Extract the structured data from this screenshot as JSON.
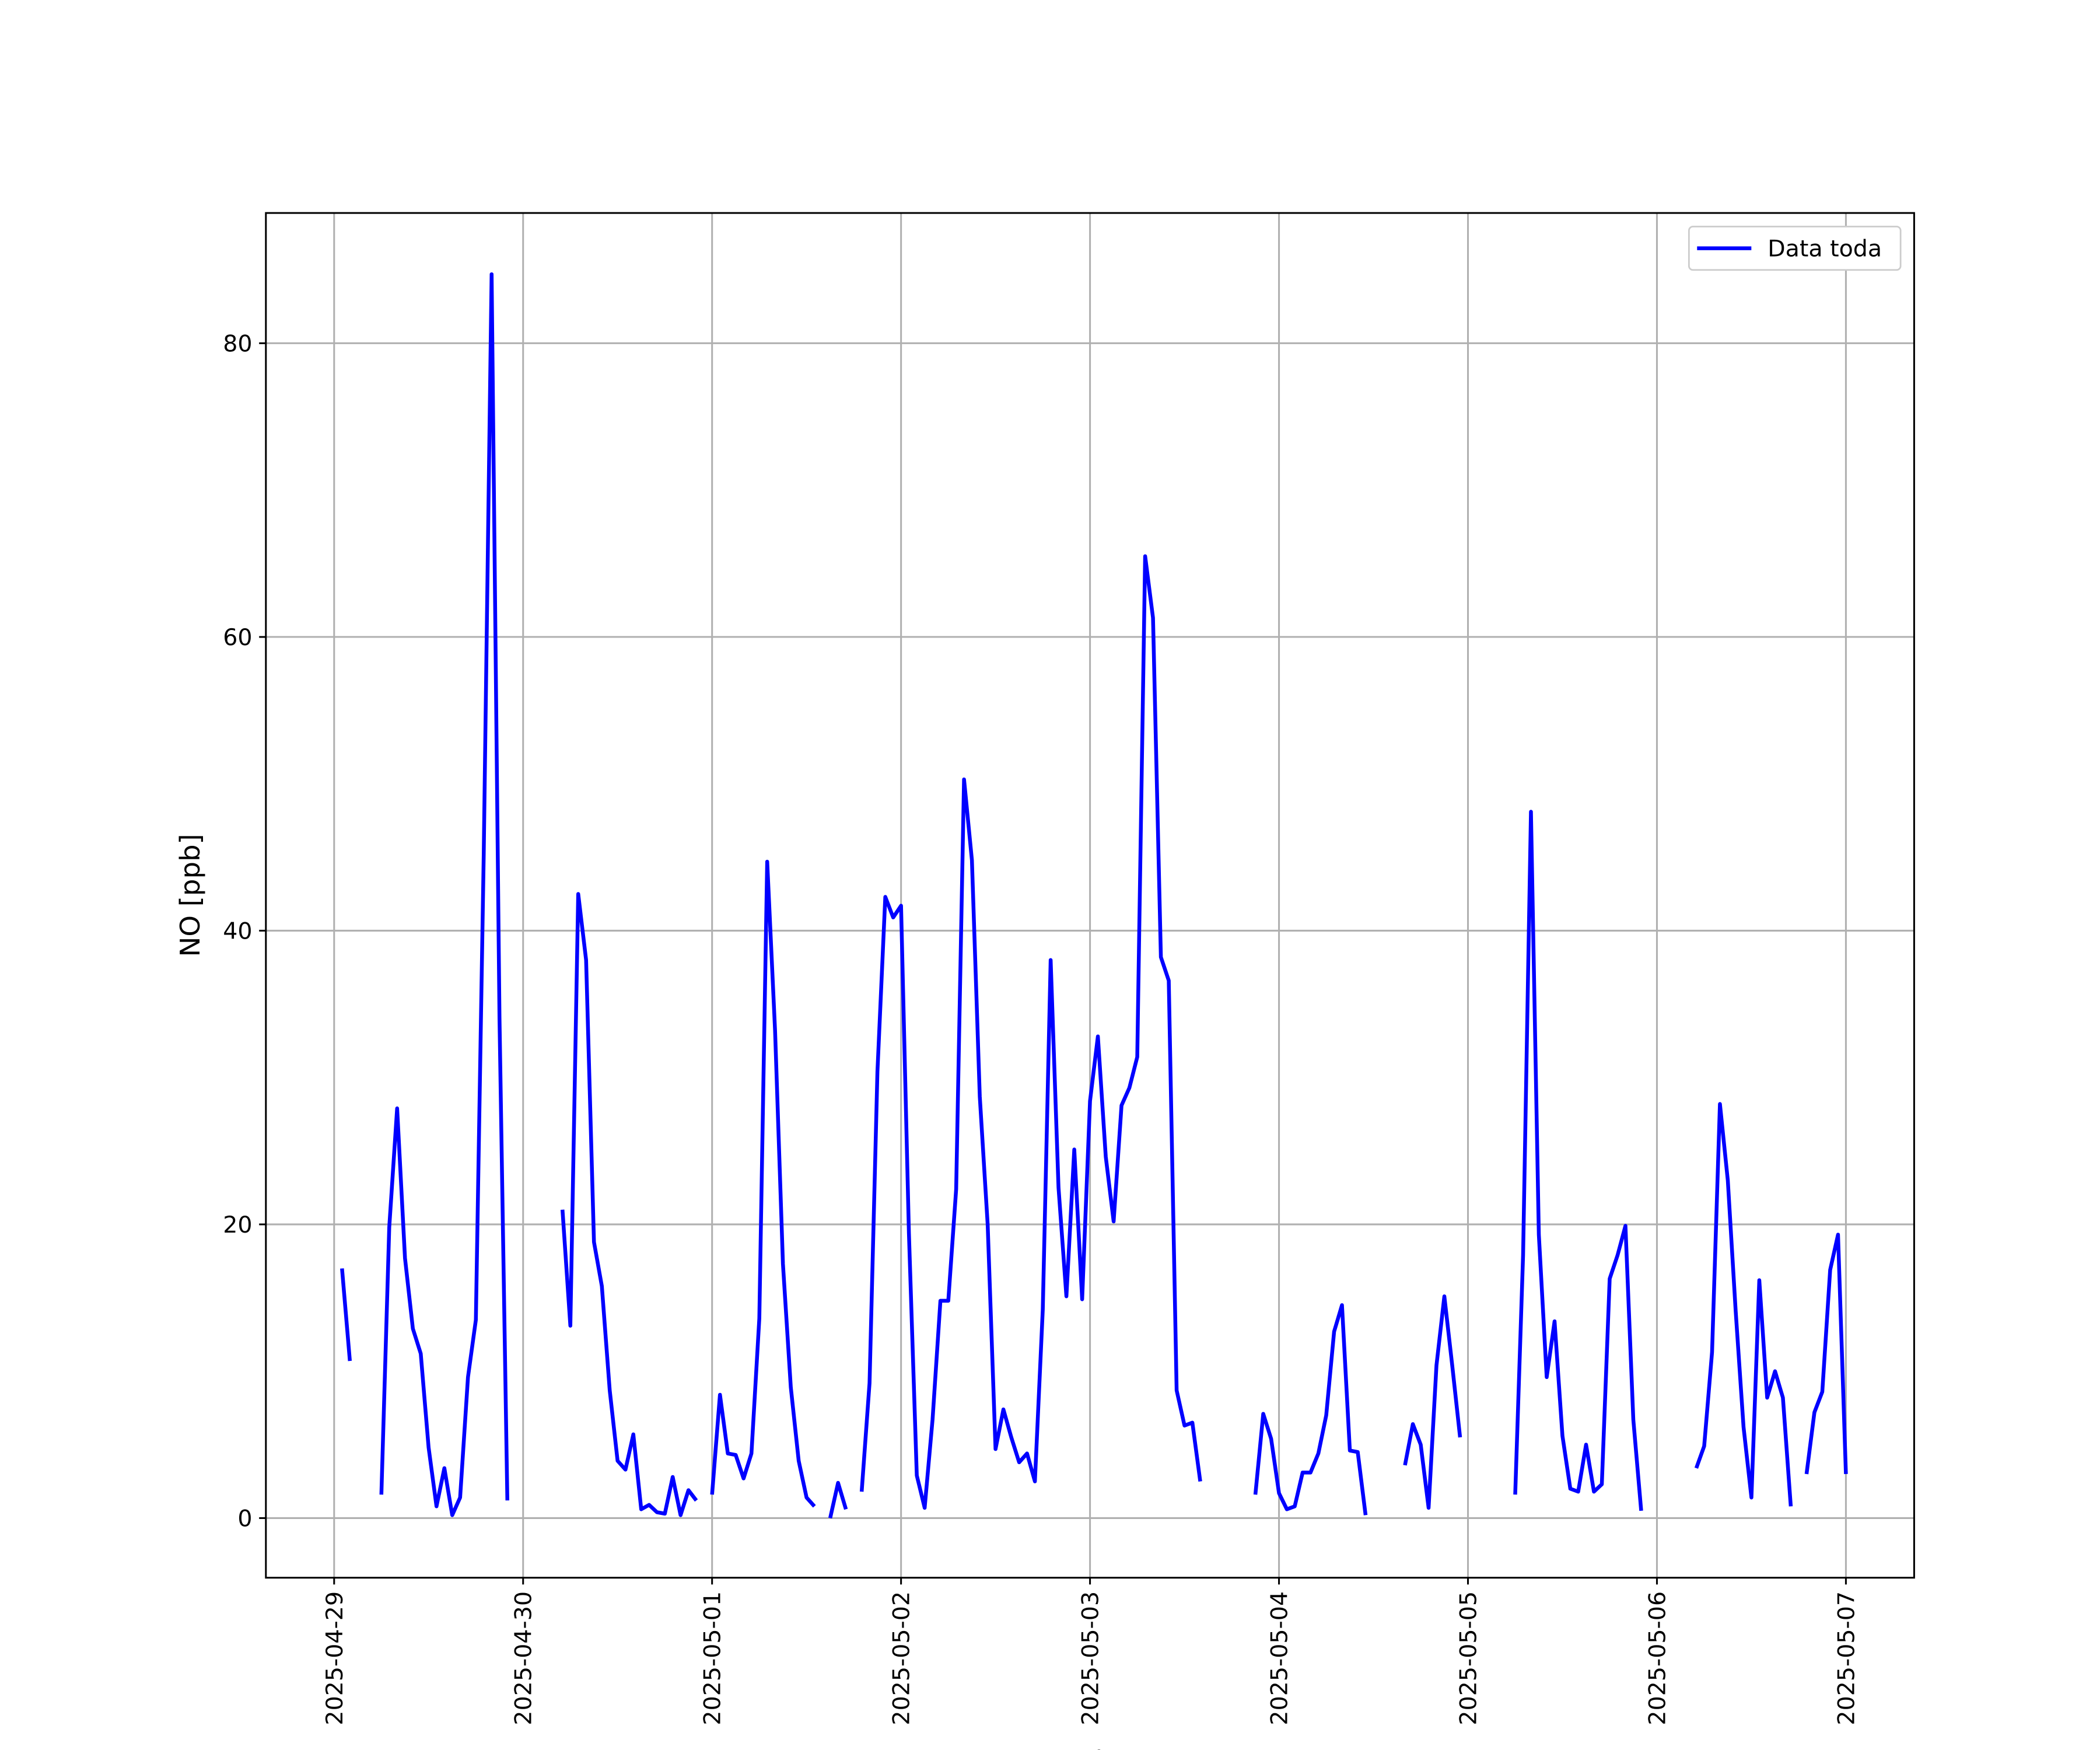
{
  "chart_data": {
    "type": "line",
    "xlabel": "Fecha",
    "ylabel": "NO [ppb]",
    "x": [
      "2025-04-29 01:00",
      "2025-04-29 02:00",
      "2025-04-29 03:00",
      "2025-04-29 04:00",
      "2025-04-29 05:00",
      "2025-04-29 06:00",
      "2025-04-29 07:00",
      "2025-04-29 08:00",
      "2025-04-29 09:00",
      "2025-04-29 10:00",
      "2025-04-29 11:00",
      "2025-04-29 12:00",
      "2025-04-29 13:00",
      "2025-04-29 14:00",
      "2025-04-29 15:00",
      "2025-04-29 16:00",
      "2025-04-29 17:00",
      "2025-04-29 18:00",
      "2025-04-29 19:00",
      "2025-04-29 20:00",
      "2025-04-29 21:00",
      "2025-04-29 22:00",
      "2025-04-29 23:00",
      "2025-04-30 00:00",
      "2025-04-30 01:00",
      "2025-04-30 02:00",
      "2025-04-30 03:00",
      "2025-04-30 04:00",
      "2025-04-30 05:00",
      "2025-04-30 06:00",
      "2025-04-30 07:00",
      "2025-04-30 08:00",
      "2025-04-30 09:00",
      "2025-04-30 10:00",
      "2025-04-30 11:00",
      "2025-04-30 12:00",
      "2025-04-30 13:00",
      "2025-04-30 14:00",
      "2025-04-30 15:00",
      "2025-04-30 16:00",
      "2025-04-30 17:00",
      "2025-04-30 18:00",
      "2025-04-30 19:00",
      "2025-04-30 20:00",
      "2025-04-30 21:00",
      "2025-04-30 22:00",
      "2025-04-30 23:00",
      "2025-05-01 00:00",
      "2025-05-01 01:00",
      "2025-05-01 02:00",
      "2025-05-01 03:00",
      "2025-05-01 04:00",
      "2025-05-01 05:00",
      "2025-05-01 06:00",
      "2025-05-01 07:00",
      "2025-05-01 08:00",
      "2025-05-01 09:00",
      "2025-05-01 10:00",
      "2025-05-01 11:00",
      "2025-05-01 12:00",
      "2025-05-01 13:00",
      "2025-05-01 14:00",
      "2025-05-01 15:00",
      "2025-05-01 16:00",
      "2025-05-01 17:00",
      "2025-05-01 18:00",
      "2025-05-01 19:00",
      "2025-05-01 20:00",
      "2025-05-01 21:00",
      "2025-05-01 22:00",
      "2025-05-01 23:00",
      "2025-05-02 00:00",
      "2025-05-02 01:00",
      "2025-05-02 02:00",
      "2025-05-02 03:00",
      "2025-05-02 04:00",
      "2025-05-02 05:00",
      "2025-05-02 06:00",
      "2025-05-02 07:00",
      "2025-05-02 08:00",
      "2025-05-02 09:00",
      "2025-05-02 10:00",
      "2025-05-02 11:00",
      "2025-05-02 12:00",
      "2025-05-02 13:00",
      "2025-05-02 14:00",
      "2025-05-02 15:00",
      "2025-05-02 16:00",
      "2025-05-02 17:00",
      "2025-05-02 18:00",
      "2025-05-02 19:00",
      "2025-05-02 20:00",
      "2025-05-02 21:00",
      "2025-05-02 22:00",
      "2025-05-02 23:00",
      "2025-05-03 00:00",
      "2025-05-03 01:00",
      "2025-05-03 02:00",
      "2025-05-03 03:00",
      "2025-05-03 04:00",
      "2025-05-03 05:00",
      "2025-05-03 06:00",
      "2025-05-03 07:00",
      "2025-05-03 08:00",
      "2025-05-03 09:00",
      "2025-05-03 10:00",
      "2025-05-03 11:00",
      "2025-05-03 12:00",
      "2025-05-03 13:00",
      "2025-05-03 14:00",
      "2025-05-03 15:00",
      "2025-05-03 16:00",
      "2025-05-03 17:00",
      "2025-05-03 18:00",
      "2025-05-03 19:00",
      "2025-05-03 20:00",
      "2025-05-03 21:00",
      "2025-05-03 22:00",
      "2025-05-03 23:00",
      "2025-05-04 00:00",
      "2025-05-04 01:00",
      "2025-05-04 02:00",
      "2025-05-04 03:00",
      "2025-05-04 04:00",
      "2025-05-04 05:00",
      "2025-05-04 06:00",
      "2025-05-04 07:00",
      "2025-05-04 08:00",
      "2025-05-04 09:00",
      "2025-05-04 10:00",
      "2025-05-04 11:00",
      "2025-05-04 12:00",
      "2025-05-04 13:00",
      "2025-05-04 14:00",
      "2025-05-04 15:00",
      "2025-05-04 16:00",
      "2025-05-04 17:00",
      "2025-05-04 18:00",
      "2025-05-04 19:00",
      "2025-05-04 20:00",
      "2025-05-04 21:00",
      "2025-05-04 22:00",
      "2025-05-04 23:00",
      "2025-05-05 00:00",
      "2025-05-05 01:00",
      "2025-05-05 02:00",
      "2025-05-05 03:00",
      "2025-05-05 04:00",
      "2025-05-05 05:00",
      "2025-05-05 06:00",
      "2025-05-05 07:00",
      "2025-05-05 08:00",
      "2025-05-05 09:00",
      "2025-05-05 10:00",
      "2025-05-05 11:00",
      "2025-05-05 12:00",
      "2025-05-05 13:00",
      "2025-05-05 14:00",
      "2025-05-05 15:00",
      "2025-05-05 16:00",
      "2025-05-05 17:00",
      "2025-05-05 18:00",
      "2025-05-05 19:00",
      "2025-05-05 20:00",
      "2025-05-05 21:00",
      "2025-05-05 22:00",
      "2025-05-05 23:00",
      "2025-05-06 00:00",
      "2025-05-06 01:00",
      "2025-05-06 02:00",
      "2025-05-06 03:00",
      "2025-05-06 04:00",
      "2025-05-06 05:00",
      "2025-05-06 06:00",
      "2025-05-06 07:00",
      "2025-05-06 08:00",
      "2025-05-06 09:00",
      "2025-05-06 10:00",
      "2025-05-06 11:00",
      "2025-05-06 12:00",
      "2025-05-06 13:00",
      "2025-05-06 14:00",
      "2025-05-06 15:00",
      "2025-05-06 16:00",
      "2025-05-06 17:00",
      "2025-05-06 18:00",
      "2025-05-06 19:00",
      "2025-05-06 20:00",
      "2025-05-06 21:00",
      "2025-05-06 22:00",
      "2025-05-06 23:00",
      "2025-05-07 00:00"
    ],
    "series": [
      {
        "name": "Data toda",
        "color": "#0000ff",
        "values": [
          17.0,
          10.7,
          null,
          null,
          null,
          1.6,
          19.8,
          27.9,
          17.7,
          12.9,
          11.2,
          4.8,
          0.8,
          3.4,
          0.2,
          1.4,
          9.6,
          13.5,
          45.2,
          84.7,
          34.1,
          1.2,
          null,
          null,
          null,
          null,
          null,
          null,
          21.0,
          13.1,
          42.5,
          38.0,
          18.8,
          15.8,
          8.7,
          3.9,
          3.3,
          5.7,
          0.6,
          0.9,
          0.4,
          0.3,
          2.8,
          0.2,
          1.9,
          1.2,
          null,
          1.6,
          8.4,
          4.4,
          4.3,
          2.7,
          4.4,
          13.6,
          44.7,
          33.2,
          17.3,
          8.9,
          3.9,
          1.4,
          0.8,
          null,
          0.0,
          2.4,
          0.6,
          null,
          1.8,
          9.2,
          30.4,
          42.3,
          40.9,
          41.7,
          19.4,
          2.9,
          0.7,
          6.7,
          14.8,
          14.8,
          22.4,
          50.3,
          44.8,
          28.7,
          20.0,
          4.7,
          7.4,
          5.5,
          3.8,
          4.4,
          2.5,
          14.2,
          38.0,
          22.5,
          15.1,
          25.1,
          14.9,
          28.4,
          32.8,
          24.6,
          20.2,
          28.1,
          29.3,
          31.4,
          65.5,
          61.3,
          38.2,
          36.6,
          8.7,
          6.3,
          6.5,
          2.5,
          null,
          null,
          null,
          null,
          null,
          null,
          1.6,
          7.1,
          5.4,
          1.7,
          0.6,
          0.8,
          3.1,
          3.1,
          4.4,
          7.0,
          12.7,
          14.5,
          4.6,
          4.5,
          0.2,
          null,
          null,
          null,
          null,
          3.6,
          6.4,
          5.0,
          0.7,
          10.4,
          15.1,
          10.4,
          5.5,
          null,
          null,
          null,
          null,
          null,
          null,
          1.6,
          17.9,
          48.1,
          19.3,
          9.6,
          13.4,
          5.6,
          2.0,
          1.8,
          5.0,
          1.8,
          2.3,
          16.3,
          17.9,
          19.9,
          6.7,
          0.5,
          null,
          null,
          null,
          null,
          null,
          null,
          3.4,
          4.9,
          11.3,
          28.2,
          23.0,
          14.1,
          6.2,
          1.4,
          16.2,
          8.2,
          10.0,
          8.2,
          0.8,
          null,
          3.0,
          7.2,
          8.6,
          16.9,
          19.3,
          3.0
        ]
      }
    ],
    "xlim": [
      "2025-04-28 15:20",
      "2025-05-07 08:40"
    ],
    "xticks": [
      "2025-04-29",
      "2025-04-30",
      "2025-05-01",
      "2025-05-02",
      "2025-05-03",
      "2025-05-04",
      "2025-05-05",
      "2025-05-06",
      "2025-05-07"
    ],
    "ylim": [
      -4.06,
      88.87
    ],
    "yticks": [
      0,
      20,
      40,
      60,
      80
    ],
    "grid": true,
    "legend": "upper right"
  }
}
